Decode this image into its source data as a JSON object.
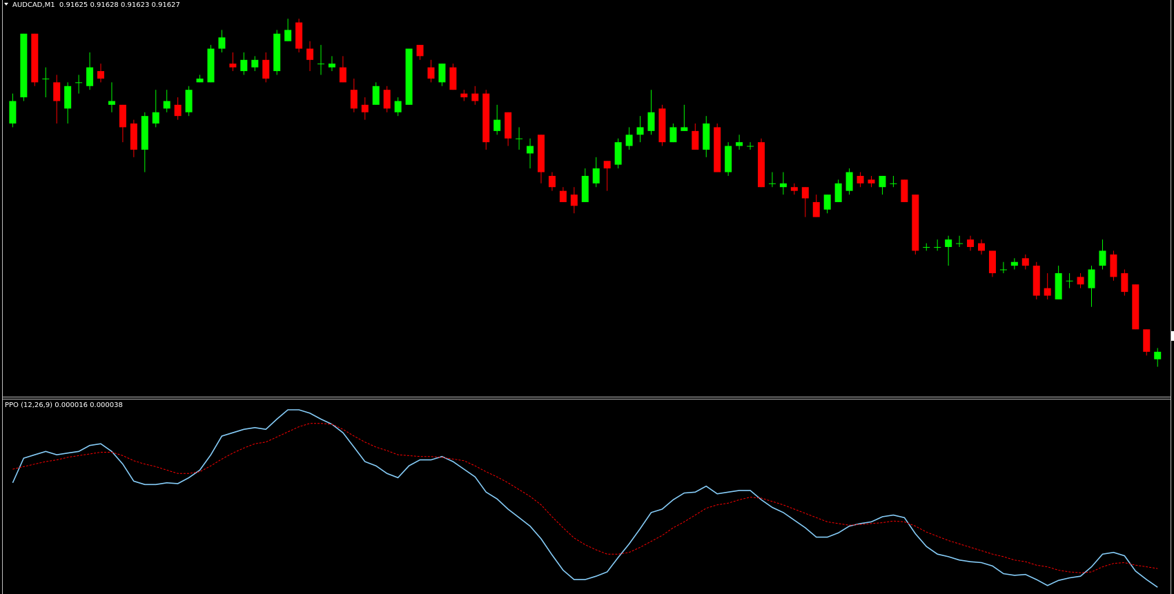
{
  "chart_data": [
    {
      "type": "candlestick",
      "title": "AUDCAD,M1  0.91625 0.91628 0.91623 0.91627",
      "up_color": "#00ff00",
      "down_color": "#ff0000",
      "ylim": [
        0.91615,
        0.91721
      ],
      "open": [
        0.91688,
        0.91695,
        0.91712,
        0.917,
        0.91699,
        0.91692,
        0.91699,
        0.91698,
        0.91702,
        0.91693,
        0.91693,
        0.91688,
        0.91681,
        0.91688,
        0.91692,
        0.91693,
        0.91691,
        0.91699,
        0.91699,
        0.91708,
        0.91704,
        0.91702,
        0.91703,
        0.91705,
        0.91702,
        0.9171,
        0.91715,
        0.91708,
        0.91704,
        0.91703,
        0.91703,
        0.91697,
        0.91693,
        0.91693,
        0.91697,
        0.91691,
        0.91693,
        0.91709,
        0.91703,
        0.91699,
        0.91703,
        0.91696,
        0.91696,
        0.91696,
        0.91686,
        0.91691,
        0.91684,
        0.9168,
        0.91685,
        0.91674,
        0.9167,
        0.91669,
        0.91667,
        0.91672,
        0.91678,
        0.91677,
        0.91682,
        0.91685,
        0.91686,
        0.91692,
        0.91683,
        0.91686,
        0.91686,
        0.91681,
        0.91687,
        0.91675,
        0.91682,
        0.91682,
        0.91683,
        0.91672,
        0.91671,
        0.91671,
        0.91671,
        0.91667,
        0.91665,
        0.91667,
        0.9167,
        0.91674,
        0.91673,
        0.91671,
        0.91672,
        0.91673,
        0.91669,
        0.91655,
        0.91655,
        0.91655,
        0.91656,
        0.91657,
        0.91656,
        0.91654,
        0.91649,
        0.9165,
        0.91652,
        0.9165,
        0.91644,
        0.91641,
        0.91646,
        0.91647,
        0.91644,
        0.9165,
        0.91653,
        0.91648,
        0.91645,
        0.91633,
        0.91625
      ],
      "high": [
        0.91696,
        0.91712,
        0.91712,
        0.91703,
        0.91701,
        0.91699,
        0.91701,
        0.91707,
        0.91704,
        0.91699,
        0.91693,
        0.91689,
        0.91691,
        0.91697,
        0.91697,
        0.91695,
        0.91698,
        0.91701,
        0.91709,
        0.91713,
        0.91707,
        0.91707,
        0.91706,
        0.91707,
        0.91713,
        0.91716,
        0.91716,
        0.9171,
        0.91709,
        0.91706,
        0.91706,
        0.917,
        0.91695,
        0.91699,
        0.91698,
        0.91695,
        0.91708,
        0.91709,
        0.91705,
        0.91704,
        0.91704,
        0.91697,
        0.91698,
        0.91697,
        0.91693,
        0.91691,
        0.91687,
        0.91684,
        0.91685,
        0.91675,
        0.91671,
        0.91671,
        0.91676,
        0.91679,
        0.91678,
        0.91684,
        0.91687,
        0.9169,
        0.91697,
        0.91693,
        0.91688,
        0.91693,
        0.91688,
        0.9169,
        0.91688,
        0.91683,
        0.91685,
        0.91683,
        0.91684,
        0.91675,
        0.91675,
        0.91672,
        0.91671,
        0.91669,
        0.91669,
        0.91673,
        0.91676,
        0.91675,
        0.91674,
        0.91674,
        0.91674,
        0.91673,
        0.91669,
        0.91656,
        0.91657,
        0.91658,
        0.91658,
        0.91658,
        0.91657,
        0.91654,
        0.91651,
        0.91652,
        0.91653,
        0.91651,
        0.91648,
        0.9165,
        0.91648,
        0.91648,
        0.9165,
        0.91657,
        0.91654,
        0.91649,
        0.91645,
        0.91633,
        0.91628
      ],
      "low": [
        0.91687,
        0.91694,
        0.91698,
        0.91695,
        0.91688,
        0.91688,
        0.91696,
        0.91697,
        0.91699,
        0.91691,
        0.91683,
        0.91679,
        0.91675,
        0.91687,
        0.91691,
        0.91689,
        0.9169,
        0.91699,
        0.91699,
        0.91707,
        0.91702,
        0.91701,
        0.91702,
        0.91699,
        0.91701,
        0.9171,
        0.91707,
        0.91702,
        0.91701,
        0.91702,
        0.91699,
        0.91691,
        0.91689,
        0.91693,
        0.91691,
        0.9169,
        0.91693,
        0.91705,
        0.91699,
        0.91698,
        0.91697,
        0.91694,
        0.91693,
        0.91681,
        0.91685,
        0.91682,
        0.91681,
        0.91676,
        0.91672,
        0.9167,
        0.91667,
        0.91664,
        0.91667,
        0.91671,
        0.9167,
        0.91676,
        0.91681,
        0.91683,
        0.91685,
        0.91682,
        0.91683,
        0.91686,
        0.91681,
        0.91679,
        0.91675,
        0.91674,
        0.91681,
        0.91681,
        0.91671,
        0.91671,
        0.91669,
        0.91669,
        0.91663,
        0.91663,
        0.91664,
        0.91667,
        0.91669,
        0.91671,
        0.91671,
        0.91669,
        0.91671,
        0.91667,
        0.91653,
        0.91654,
        0.91654,
        0.9165,
        0.91655,
        0.91654,
        0.91653,
        0.91647,
        0.91648,
        0.91649,
        0.91649,
        0.91641,
        0.91641,
        0.91641,
        0.91644,
        0.91644,
        0.91639,
        0.91649,
        0.91646,
        0.91642,
        0.91633,
        0.91626,
        0.91623
      ],
      "close": [
        0.91694,
        0.91712,
        0.91699,
        0.917,
        0.91694,
        0.91698,
        0.91699,
        0.91703,
        0.917,
        0.91694,
        0.91687,
        0.91681,
        0.9169,
        0.91691,
        0.91694,
        0.9169,
        0.91697,
        0.917,
        0.91708,
        0.91711,
        0.91703,
        0.91705,
        0.91705,
        0.917,
        0.91712,
        0.91713,
        0.91708,
        0.91705,
        0.91704,
        0.91704,
        0.91699,
        0.91692,
        0.91691,
        0.91698,
        0.91692,
        0.91694,
        0.91708,
        0.91706,
        0.917,
        0.91704,
        0.91697,
        0.91695,
        0.91694,
        0.91683,
        0.91689,
        0.91684,
        0.91684,
        0.91682,
        0.91675,
        0.91671,
        0.91667,
        0.91666,
        0.91674,
        0.91676,
        0.91676,
        0.91683,
        0.91685,
        0.91687,
        0.91691,
        0.91683,
        0.91687,
        0.91687,
        0.91681,
        0.91688,
        0.91675,
        0.91682,
        0.91683,
        0.91682,
        0.91671,
        0.91672,
        0.91672,
        0.9167,
        0.91668,
        0.91663,
        0.91669,
        0.91672,
        0.91675,
        0.91672,
        0.91672,
        0.91674,
        0.91672,
        0.91667,
        0.91654,
        0.91655,
        0.91655,
        0.91657,
        0.91656,
        0.91655,
        0.91654,
        0.91648,
        0.91649,
        0.91651,
        0.9165,
        0.91642,
        0.91642,
        0.91648,
        0.91646,
        0.91645,
        0.91649,
        0.91654,
        0.91647,
        0.91643,
        0.91633,
        0.91627,
        0.91627
      ]
    },
    {
      "type": "line",
      "title": "PPO (12,26,9) 0.000016 0.000038",
      "ylim": [
        8e-06,
        0.000238
      ],
      "series": [
        {
          "color": "#87cefa",
          "dash": false,
          "values": [
            0.000139,
            0.000168,
            0.000172,
            0.000176,
            0.000172,
            0.000174,
            0.000176,
            0.000183,
            0.000185,
            0.000176,
            0.000161,
            0.000141,
            0.000137,
            0.000137,
            0.000139,
            0.000138,
            0.000145,
            0.000154,
            0.000172,
            0.000194,
            0.000198,
            0.000202,
            0.000204,
            0.000202,
            0.000214,
            0.000225,
            0.000225,
            0.000221,
            0.000214,
            0.000208,
            0.000198,
            0.000181,
            0.000164,
            0.000159,
            0.00015,
            0.000145,
            0.000159,
            0.000166,
            0.000166,
            0.00017,
            0.000164,
            0.000155,
            0.000146,
            0.000128,
            0.00012,
            0.000108,
            9.8e-05,
            8.8e-05,
            7.3e-05,
            5.4e-05,
            3.6e-05,
            2.5e-05,
            2.5e-05,
            2.9e-05,
            3.4e-05,
            5.1e-05,
            6.7e-05,
            8.5e-05,
            0.000104,
            0.000108,
            0.000119,
            0.000127,
            0.000128,
            0.000135,
            0.000126,
            0.000128,
            0.00013,
            0.00013,
            0.000119,
            0.00011,
            0.000104,
            9.5e-05,
            8.6e-05,
            7.5e-05,
            7.5e-05,
            8e-05,
            8.8e-05,
            9.1e-05,
            9.3e-05,
            9.9e-05,
            0.000101,
            9.8e-05,
            7.9e-05,
            6.4e-05,
            5.5e-05,
            5.2e-05,
            4.8e-05,
            4.6e-05,
            4.5e-05,
            4.1e-05,
            3.2e-05,
            3e-05,
            3.1e-05,
            2.5e-05,
            1.8e-05,
            2.4e-05,
            2.7e-05,
            2.9e-05,
            4e-05,
            5.5e-05,
            5.7e-05,
            5.3e-05,
            3.5e-05,
            2.5e-05,
            1.6e-05
          ]
        },
        {
          "color": "#ff0000",
          "dash": true,
          "values": [
            0.000155,
            0.000158,
            0.000161,
            0.000164,
            0.000166,
            0.000169,
            0.000171,
            0.000173,
            0.000175,
            0.000175,
            0.000171,
            0.000165,
            0.000161,
            0.000158,
            0.000154,
            0.00015,
            0.00015,
            0.000152,
            0.000159,
            0.000167,
            0.000174,
            0.00018,
            0.000185,
            0.000187,
            0.000193,
            0.000199,
            0.000205,
            0.000209,
            0.000209,
            0.000208,
            0.000202,
            0.000194,
            0.000187,
            0.000181,
            0.000177,
            0.000172,
            0.000171,
            0.00017,
            0.00017,
            0.000169,
            0.000167,
            0.000165,
            0.000159,
            0.000152,
            0.000146,
            0.000139,
            0.000131,
            0.000123,
            0.000113,
            9.9e-05,
            8.6e-05,
            7.4e-05,
            6.6e-05,
            6e-05,
            5.5e-05,
            5.5e-05,
            5.7e-05,
            6.3e-05,
            7e-05,
            7.7e-05,
            8.6e-05,
            9.3e-05,
            0.000101,
            0.000109,
            0.000113,
            0.000115,
            0.000119,
            0.000122,
            0.000121,
            0.000117,
            0.000113,
            0.000108,
            0.000103,
            9.8e-05,
            9.3e-05,
            9.1e-05,
            8.9e-05,
            9e-05,
            9.1e-05,
            9.2e-05,
            9.4e-05,
            9.3e-05,
            8.8e-05,
            8.1e-05,
            7.6e-05,
            7.1e-05,
            6.7e-05,
            6.3e-05,
            5.9e-05,
            5.5e-05,
            5.2e-05,
            4.8e-05,
            4.6e-05,
            4.2e-05,
            4e-05,
            3.6e-05,
            3.4e-05,
            3.3e-05,
            3.4e-05,
            4e-05,
            4.4e-05,
            4.5e-05,
            4.2e-05,
            4e-05,
            3.8e-05
          ]
        }
      ]
    }
  ]
}
